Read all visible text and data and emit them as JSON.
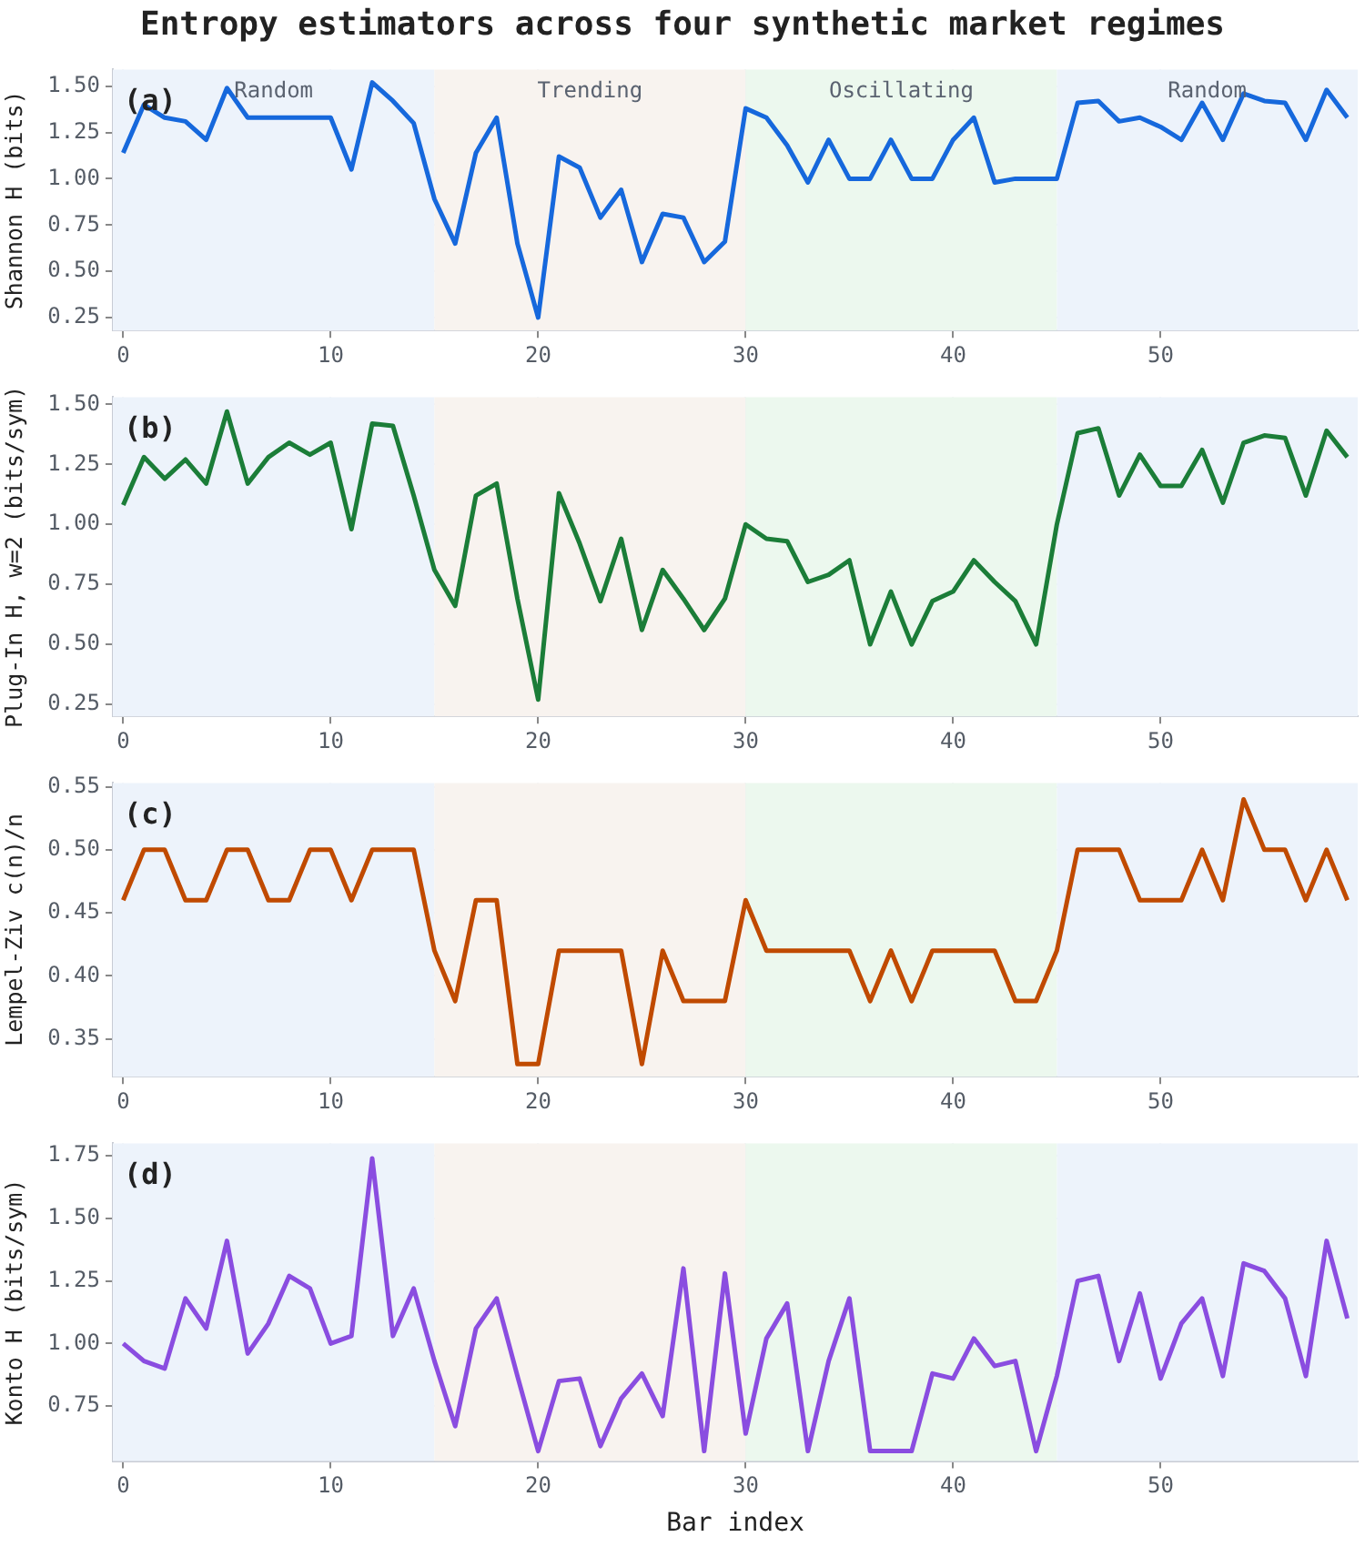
{
  "chart_data": [
    {
      "type": "line",
      "title": "Entropy estimators across four synthetic market regimes",
      "ylabel": "Shannon H (bits)",
      "annotations": [
        "(a)"
      ],
      "x": [
        0,
        1,
        2,
        3,
        4,
        5,
        6,
        7,
        8,
        9,
        10,
        11,
        12,
        13,
        14,
        15,
        16,
        17,
        18,
        19,
        20,
        21,
        22,
        23,
        24,
        25,
        26,
        27,
        28,
        29,
        30,
        31,
        32,
        33,
        34,
        35,
        36,
        37,
        38,
        39,
        40,
        41,
        42,
        43,
        44,
        45,
        46,
        47,
        48,
        49,
        50,
        51,
        52,
        53,
        54,
        55,
        56,
        57,
        58,
        59
      ],
      "series": [
        {
          "color": "#1668dc",
          "values": [
            1.14,
            1.4,
            1.33,
            1.31,
            1.21,
            1.49,
            1.33,
            1.33,
            1.33,
            1.33,
            1.33,
            1.05,
            1.52,
            1.42,
            1.3,
            0.89,
            0.65,
            1.14,
            1.33,
            0.65,
            0.25,
            1.12,
            1.06,
            0.79,
            0.94,
            0.55,
            0.81,
            0.79,
            0.55,
            0.66,
            1.38,
            1.33,
            1.18,
            0.98,
            1.21,
            1.0,
            1.0,
            1.21,
            1.0,
            1.0,
            1.21,
            1.33,
            0.98,
            1.0,
            1.0,
            1.0,
            1.41,
            1.42,
            1.31,
            1.33,
            1.28,
            1.21,
            1.41,
            1.21,
            1.46,
            1.42,
            1.41,
            1.21,
            1.48,
            1.33
          ]
        }
      ],
      "bands": [
        {
          "axis": "x",
          "from": -0.5,
          "to": 15,
          "label": "Random",
          "color": "#edf3fb"
        },
        {
          "axis": "x",
          "from": 15,
          "to": 30,
          "label": "Trending",
          "color": "#f8f3ef"
        },
        {
          "axis": "x",
          "from": 30,
          "to": 45,
          "label": "Oscillating",
          "color": "#ecf8ee"
        },
        {
          "axis": "x",
          "from": 45,
          "to": 59.5,
          "label": "Random",
          "color": "#edf3fb"
        }
      ],
      "xlim": [
        -0.5,
        59.5
      ],
      "xticks": [
        0,
        10,
        20,
        30,
        40,
        50
      ],
      "ylim": [
        0.18,
        1.59
      ],
      "yticks": [
        0.25,
        {
          "value": 0.5,
          "label": "0.50"
        },
        0.75,
        {
          "value": 1,
          "label": "1.00"
        },
        1.25,
        {
          "value": 1.5,
          "label": "1.50"
        }
      ],
      "grid": true,
      "line_style": "solid",
      "marker": "none",
      "legend": false
    },
    {
      "type": "line",
      "ylabel": "Plug-In H, w=2 (bits/sym)",
      "annotations": [
        "(b)"
      ],
      "x": [
        0,
        1,
        2,
        3,
        4,
        5,
        6,
        7,
        8,
        9,
        10,
        11,
        12,
        13,
        14,
        15,
        16,
        17,
        18,
        19,
        20,
        21,
        22,
        23,
        24,
        25,
        26,
        27,
        28,
        29,
        30,
        31,
        32,
        33,
        34,
        35,
        36,
        37,
        38,
        39,
        40,
        41,
        42,
        43,
        44,
        45,
        46,
        47,
        48,
        49,
        50,
        51,
        52,
        53,
        54,
        55,
        56,
        57,
        58,
        59
      ],
      "series": [
        {
          "color": "#1b7d38",
          "values": [
            1.08,
            1.28,
            1.19,
            1.27,
            1.17,
            1.47,
            1.17,
            1.28,
            1.34,
            1.29,
            1.34,
            0.98,
            1.42,
            1.41,
            1.12,
            0.81,
            0.66,
            1.12,
            1.17,
            0.69,
            0.27,
            1.13,
            0.92,
            0.68,
            0.94,
            0.56,
            0.81,
            0.69,
            0.56,
            0.69,
            1.0,
            0.94,
            0.93,
            0.76,
            0.79,
            0.85,
            0.5,
            0.72,
            0.5,
            0.68,
            0.72,
            0.85,
            0.76,
            0.68,
            0.5,
            1.0,
            1.38,
            1.4,
            1.12,
            1.29,
            1.16,
            1.16,
            1.31,
            1.09,
            1.34,
            1.37,
            1.36,
            1.12,
            1.39,
            1.28
          ]
        }
      ],
      "bands": [
        {
          "axis": "x",
          "from": -0.5,
          "to": 15,
          "color": "#edf3fb"
        },
        {
          "axis": "x",
          "from": 15,
          "to": 30,
          "color": "#f8f3ef"
        },
        {
          "axis": "x",
          "from": 30,
          "to": 45,
          "color": "#ecf8ee"
        },
        {
          "axis": "x",
          "from": 45,
          "to": 59.5,
          "color": "#edf3fb"
        }
      ],
      "xlim": [
        -0.5,
        59.5
      ],
      "xticks": [
        0,
        10,
        20,
        30,
        40,
        50
      ],
      "ylim": [
        0.2,
        1.53
      ],
      "yticks": [
        0.25,
        {
          "value": 0.5,
          "label": "0.50"
        },
        0.75,
        {
          "value": 1,
          "label": "1.00"
        },
        1.25,
        {
          "value": 1.5,
          "label": "1.50"
        }
      ],
      "grid": true,
      "line_style": "solid",
      "marker": "none",
      "legend": false
    },
    {
      "type": "line",
      "ylabel": "Lempel-Ziv c(n)/n",
      "annotations": [
        "(c)"
      ],
      "x": [
        0,
        1,
        2,
        3,
        4,
        5,
        6,
        7,
        8,
        9,
        10,
        11,
        12,
        13,
        14,
        15,
        16,
        17,
        18,
        19,
        20,
        21,
        22,
        23,
        24,
        25,
        26,
        27,
        28,
        29,
        30,
        31,
        32,
        33,
        34,
        35,
        36,
        37,
        38,
        39,
        40,
        41,
        42,
        43,
        44,
        45,
        46,
        47,
        48,
        49,
        50,
        51,
        52,
        53,
        54,
        55,
        56,
        57,
        58,
        59
      ],
      "series": [
        {
          "color": "#c04a00",
          "values": [
            0.46,
            0.5,
            0.5,
            0.46,
            0.46,
            0.5,
            0.5,
            0.46,
            0.46,
            0.5,
            0.5,
            0.46,
            0.5,
            0.5,
            0.5,
            0.42,
            0.38,
            0.46,
            0.46,
            0.33,
            0.33,
            0.42,
            0.42,
            0.42,
            0.42,
            0.33,
            0.42,
            0.38,
            0.38,
            0.38,
            0.46,
            0.42,
            0.42,
            0.42,
            0.42,
            0.42,
            0.38,
            0.42,
            0.38,
            0.42,
            0.42,
            0.42,
            0.42,
            0.38,
            0.38,
            0.42,
            0.5,
            0.5,
            0.5,
            0.46,
            0.46,
            0.46,
            0.5,
            0.46,
            0.54,
            0.5,
            0.5,
            0.46,
            0.5,
            0.46
          ]
        }
      ],
      "bands": [
        {
          "axis": "x",
          "from": -0.5,
          "to": 15,
          "color": "#edf3fb"
        },
        {
          "axis": "x",
          "from": 15,
          "to": 30,
          "color": "#f8f3ef"
        },
        {
          "axis": "x",
          "from": 30,
          "to": 45,
          "color": "#ecf8ee"
        },
        {
          "axis": "x",
          "from": 45,
          "to": 59.5,
          "color": "#edf3fb"
        }
      ],
      "xlim": [
        -0.5,
        59.5
      ],
      "xticks": [
        0,
        10,
        20,
        30,
        40,
        50
      ],
      "ylim": [
        0.32,
        0.553
      ],
      "yticks": [
        0.35,
        {
          "value": 0.4,
          "label": "0.40"
        },
        0.45,
        {
          "value": 0.5,
          "label": "0.50"
        },
        0.55
      ],
      "grid": true,
      "line_style": "solid",
      "marker": "none",
      "legend": false
    },
    {
      "type": "line",
      "xlabel": "Bar index",
      "ylabel": "Konto H (bits/sym)",
      "annotations": [
        "(d)"
      ],
      "x": [
        0,
        1,
        2,
        3,
        4,
        5,
        6,
        7,
        8,
        9,
        10,
        11,
        12,
        13,
        14,
        15,
        16,
        17,
        18,
        19,
        20,
        21,
        22,
        23,
        24,
        25,
        26,
        27,
        28,
        29,
        30,
        31,
        32,
        33,
        34,
        35,
        36,
        37,
        38,
        39,
        40,
        41,
        42,
        43,
        44,
        45,
        46,
        47,
        48,
        49,
        50,
        51,
        52,
        53,
        54,
        55,
        56,
        57,
        58,
        59
      ],
      "series": [
        {
          "color": "#8a4de0",
          "values": [
            1.0,
            0.93,
            0.9,
            1.18,
            1.06,
            1.41,
            0.96,
            1.08,
            1.27,
            1.22,
            1.0,
            1.03,
            1.74,
            1.03,
            1.22,
            0.93,
            0.67,
            1.06,
            1.18,
            0.87,
            0.57,
            0.85,
            0.86,
            0.59,
            0.78,
            0.88,
            0.71,
            1.3,
            0.57,
            1.28,
            0.64,
            1.02,
            1.16,
            0.57,
            0.93,
            1.18,
            0.57,
            0.57,
            0.57,
            0.88,
            0.86,
            1.02,
            0.91,
            0.93,
            0.57,
            0.87,
            1.25,
            1.27,
            0.93,
            1.2,
            0.86,
            1.08,
            1.18,
            0.87,
            1.32,
            1.29,
            1.18,
            0.87,
            1.41,
            1.1
          ]
        }
      ],
      "bands": [
        {
          "axis": "x",
          "from": -0.5,
          "to": 15,
          "color": "#edf3fb"
        },
        {
          "axis": "x",
          "from": 15,
          "to": 30,
          "color": "#f8f3ef"
        },
        {
          "axis": "x",
          "from": 30,
          "to": 45,
          "color": "#ecf8ee"
        },
        {
          "axis": "x",
          "from": 45,
          "to": 59.5,
          "color": "#edf3fb"
        }
      ],
      "xlim": [
        -0.5,
        59.5
      ],
      "xticks": [
        0,
        10,
        20,
        30,
        40,
        50
      ],
      "ylim": [
        0.53,
        1.8
      ],
      "yticks": [
        0.75,
        {
          "value": 1,
          "label": "1.00"
        },
        1.25,
        {
          "value": 1.5,
          "label": "1.50"
        },
        1.75
      ],
      "grid": true,
      "line_style": "solid",
      "marker": "none",
      "legend": false
    }
  ]
}
